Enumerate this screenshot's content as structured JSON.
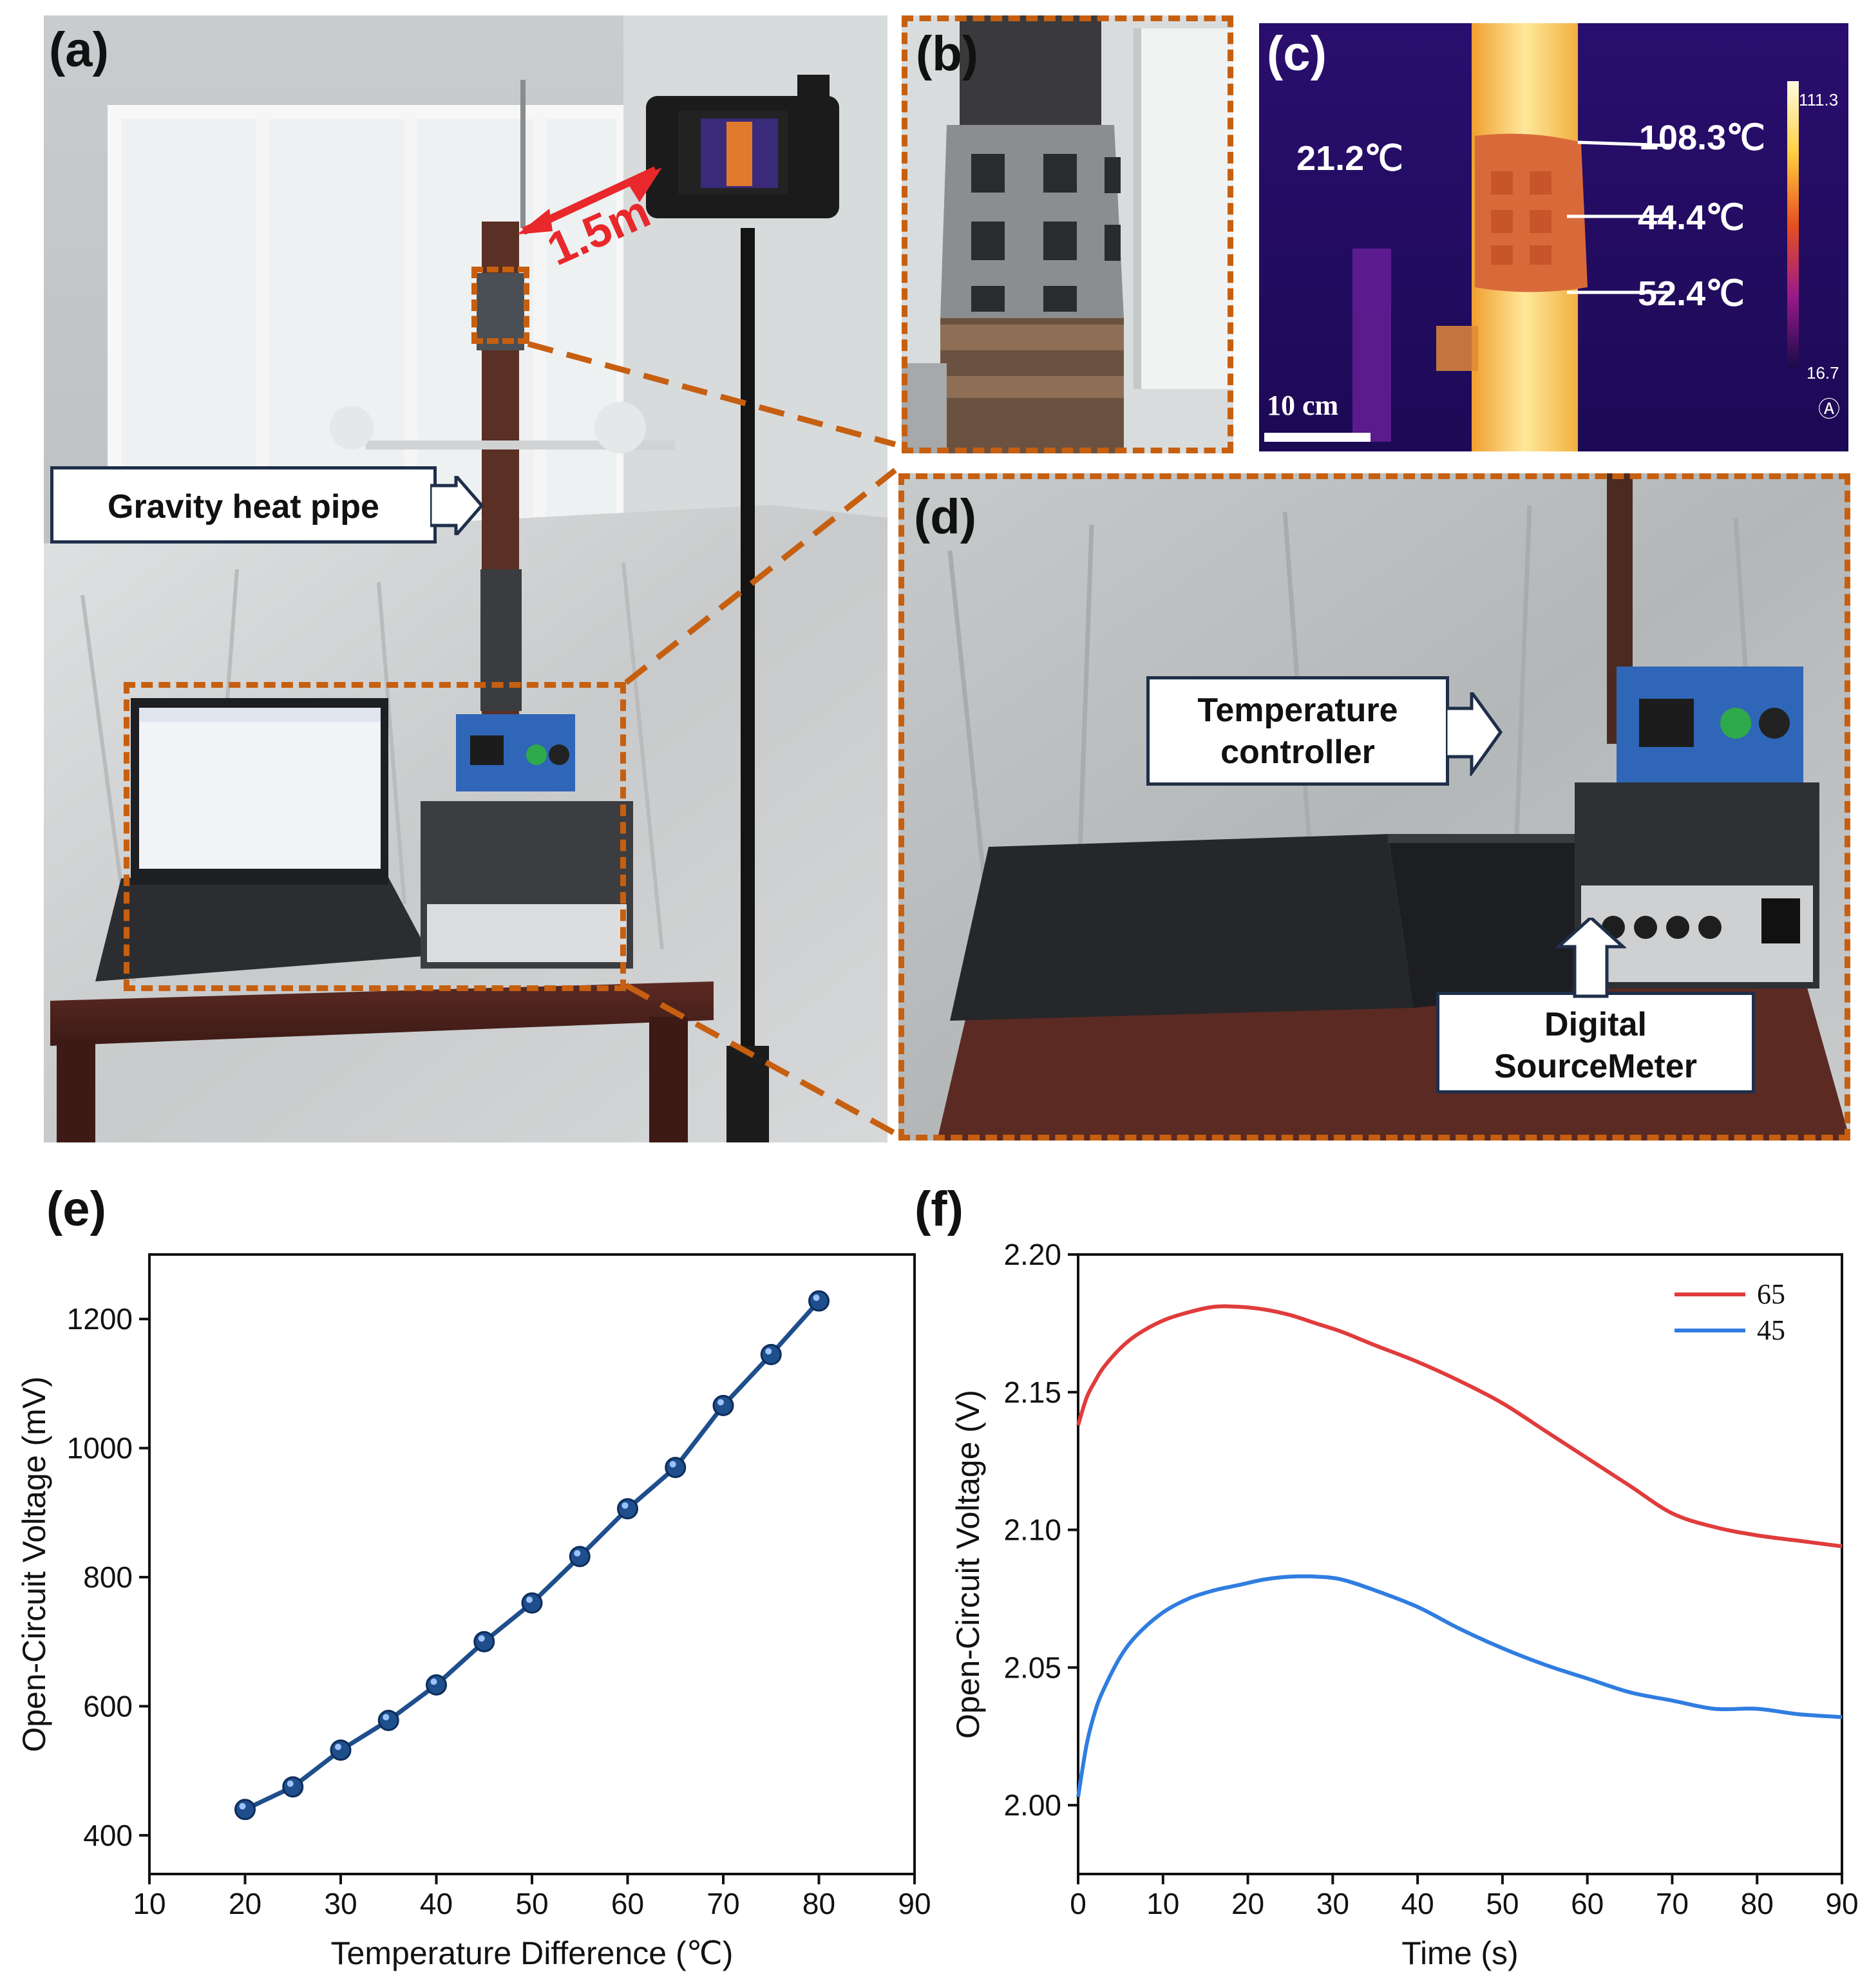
{
  "panels": {
    "a": {
      "label": "(a)",
      "distance_label": "1.5m",
      "callout_heat_pipe": "Gravity heat pipe"
    },
    "b": {
      "label": "(b)"
    },
    "c": {
      "label": "(c)",
      "ambient_temp": "21.2℃",
      "temp_top": "108.3℃",
      "temp_mid": "44.4℃",
      "temp_bottom": "52.4℃",
      "scale_max": "111.3",
      "scale_min": "16.7",
      "scale_bar": "10 cm",
      "mode_glyph": "Ⓐ"
    },
    "d": {
      "label": "(d)",
      "callout_temp_controller_line1": "Temperature",
      "callout_temp_controller_line2": "controller",
      "callout_sourcemeter_line1": "Digital",
      "callout_sourcemeter_line2": "SourceMeter"
    },
    "e": {
      "label": "(e)"
    },
    "f": {
      "label": "(f)"
    }
  },
  "colors": {
    "dashed_frame": "#c65f10",
    "arrow_red": "#e8282b",
    "line_e": "#1e4e8c",
    "line_f_65": "#e03c3c",
    "line_f_45": "#2f7de0"
  },
  "chart_data": [
    {
      "type": "line",
      "panel": "e",
      "xlabel": "Temperature Difference (℃)",
      "ylabel": "Open-Circuit Voltage (mV)",
      "xlim": [
        10,
        90
      ],
      "ylim": [
        340,
        1300
      ],
      "xticks": [
        "10",
        "20",
        "30",
        "40",
        "50",
        "60",
        "70",
        "80",
        "90"
      ],
      "yticks": [
        "400",
        "600",
        "800",
        "1000",
        "1200"
      ],
      "markers": true,
      "x": [
        20,
        25,
        30,
        35,
        40,
        45,
        50,
        55,
        60,
        65,
        70,
        75,
        80
      ],
      "series": [
        {
          "values": [
            440,
            475,
            532,
            578,
            633,
            700,
            760,
            832,
            906,
            970,
            1066,
            1145,
            1228
          ]
        }
      ]
    },
    {
      "type": "line",
      "panel": "f",
      "xlabel": "Time (s)",
      "ylabel": "Open-Circuit Voltage (V)",
      "xlim": [
        0,
        90
      ],
      "ylim": [
        1.975,
        2.2
      ],
      "xticks": [
        "0",
        "10",
        "20",
        "30",
        "40",
        "50",
        "60",
        "70",
        "80",
        "90"
      ],
      "yticks": [
        "2.00",
        "2.05",
        "2.10",
        "2.15",
        "2.20"
      ],
      "legend": "top-right",
      "x": [
        0,
        1,
        2,
        3,
        5,
        7,
        10,
        13,
        16,
        19,
        22,
        25,
        28,
        31,
        35,
        40,
        45,
        50,
        55,
        60,
        65,
        70,
        75,
        80,
        85,
        90
      ],
      "series": [
        {
          "name": "65",
          "values": [
            2.138,
            2.148,
            2.154,
            2.159,
            2.166,
            2.171,
            2.176,
            2.179,
            2.181,
            2.181,
            2.18,
            2.178,
            2.175,
            2.172,
            2.167,
            2.161,
            2.154,
            2.146,
            2.136,
            2.126,
            2.116,
            2.106,
            2.101,
            2.098,
            2.096,
            2.094
          ]
        },
        {
          "name": "45",
          "values": [
            2.003,
            2.022,
            2.034,
            2.042,
            2.054,
            2.062,
            2.07,
            2.075,
            2.078,
            2.08,
            2.082,
            2.083,
            2.083,
            2.082,
            2.078,
            2.072,
            2.064,
            2.057,
            2.051,
            2.046,
            2.041,
            2.038,
            2.035,
            2.035,
            2.033,
            2.032
          ]
        }
      ]
    }
  ]
}
